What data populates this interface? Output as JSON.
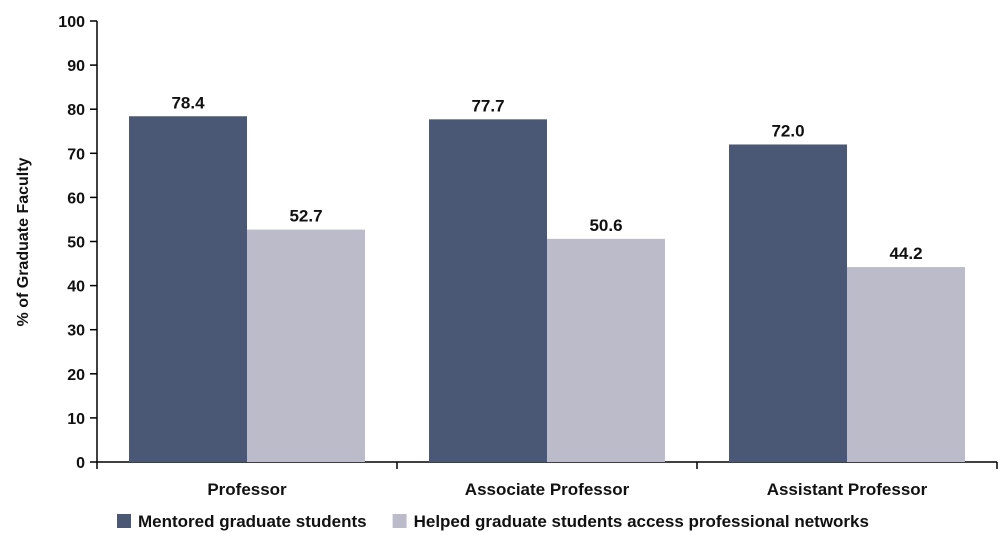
{
  "chart_data": {
    "type": "bar",
    "categories": [
      "Professor",
      "Associate Professor",
      "Assistant Professor"
    ],
    "series": [
      {
        "name": "Mentored graduate students",
        "values": [
          78.4,
          77.7,
          72.0
        ],
        "labels": [
          "78.4",
          "77.7",
          "72.0"
        ],
        "color": "#4a5775"
      },
      {
        "name": "Helped graduate students access professional networks",
        "values": [
          52.7,
          50.6,
          44.2
        ],
        "labels": [
          "52.7",
          "50.6",
          "44.2"
        ],
        "color": "#bcbbc9"
      }
    ],
    "ylabel": "% of Graduate Faculty",
    "xlabel": "",
    "ylim": [
      0,
      100
    ],
    "yticks": [
      "0",
      "10",
      "20",
      "30",
      "40",
      "50",
      "60",
      "70",
      "80",
      "90",
      "100"
    ],
    "grid": false,
    "legend_position": "bottom"
  }
}
